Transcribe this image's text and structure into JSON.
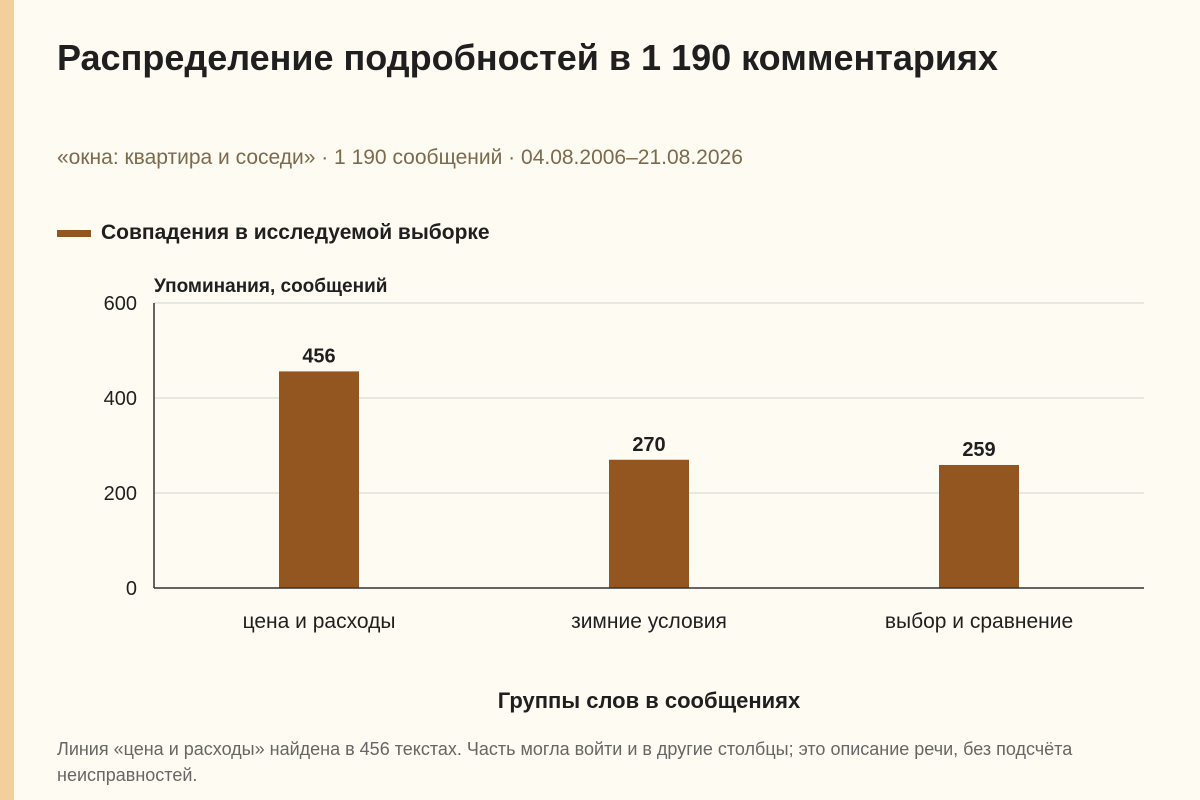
{
  "header": {
    "title": "Распределение подробностей в 1 190 комментариях",
    "subtitle": "«окна: квартира и соседи» · 1 190 сообщений · 04.08.2006–21.08.2026"
  },
  "footnote": "Линия «цена и расходы» найдена в 456 текстах. Часть могла войти и в другие столбцы; это описание речи, без подсчёта неисправностей.",
  "colors": {
    "bar": "#935620",
    "accent_strip": "#f3cf9c",
    "background": "#fdfbf2",
    "grid": "#d4d4d4",
    "axis": "#333333"
  },
  "chart_data": {
    "type": "bar",
    "categories": [
      "цена и расходы",
      "зимние условия",
      "выбор и сравнение"
    ],
    "series": [
      {
        "name": "Совпадения в исследуемой выборке",
        "values": [
          456,
          270,
          259
        ]
      }
    ],
    "data_labels": [
      "456",
      "270",
      "259"
    ],
    "ylabel": "Упоминания, сообщений",
    "xlabel": "Группы слов в сообщениях",
    "ylim": [
      0,
      600
    ],
    "yticks": [
      0,
      200,
      400,
      600
    ],
    "ytick_labels": [
      "0",
      "200",
      "400",
      "600"
    ],
    "grid": true,
    "legend": "top-left"
  }
}
